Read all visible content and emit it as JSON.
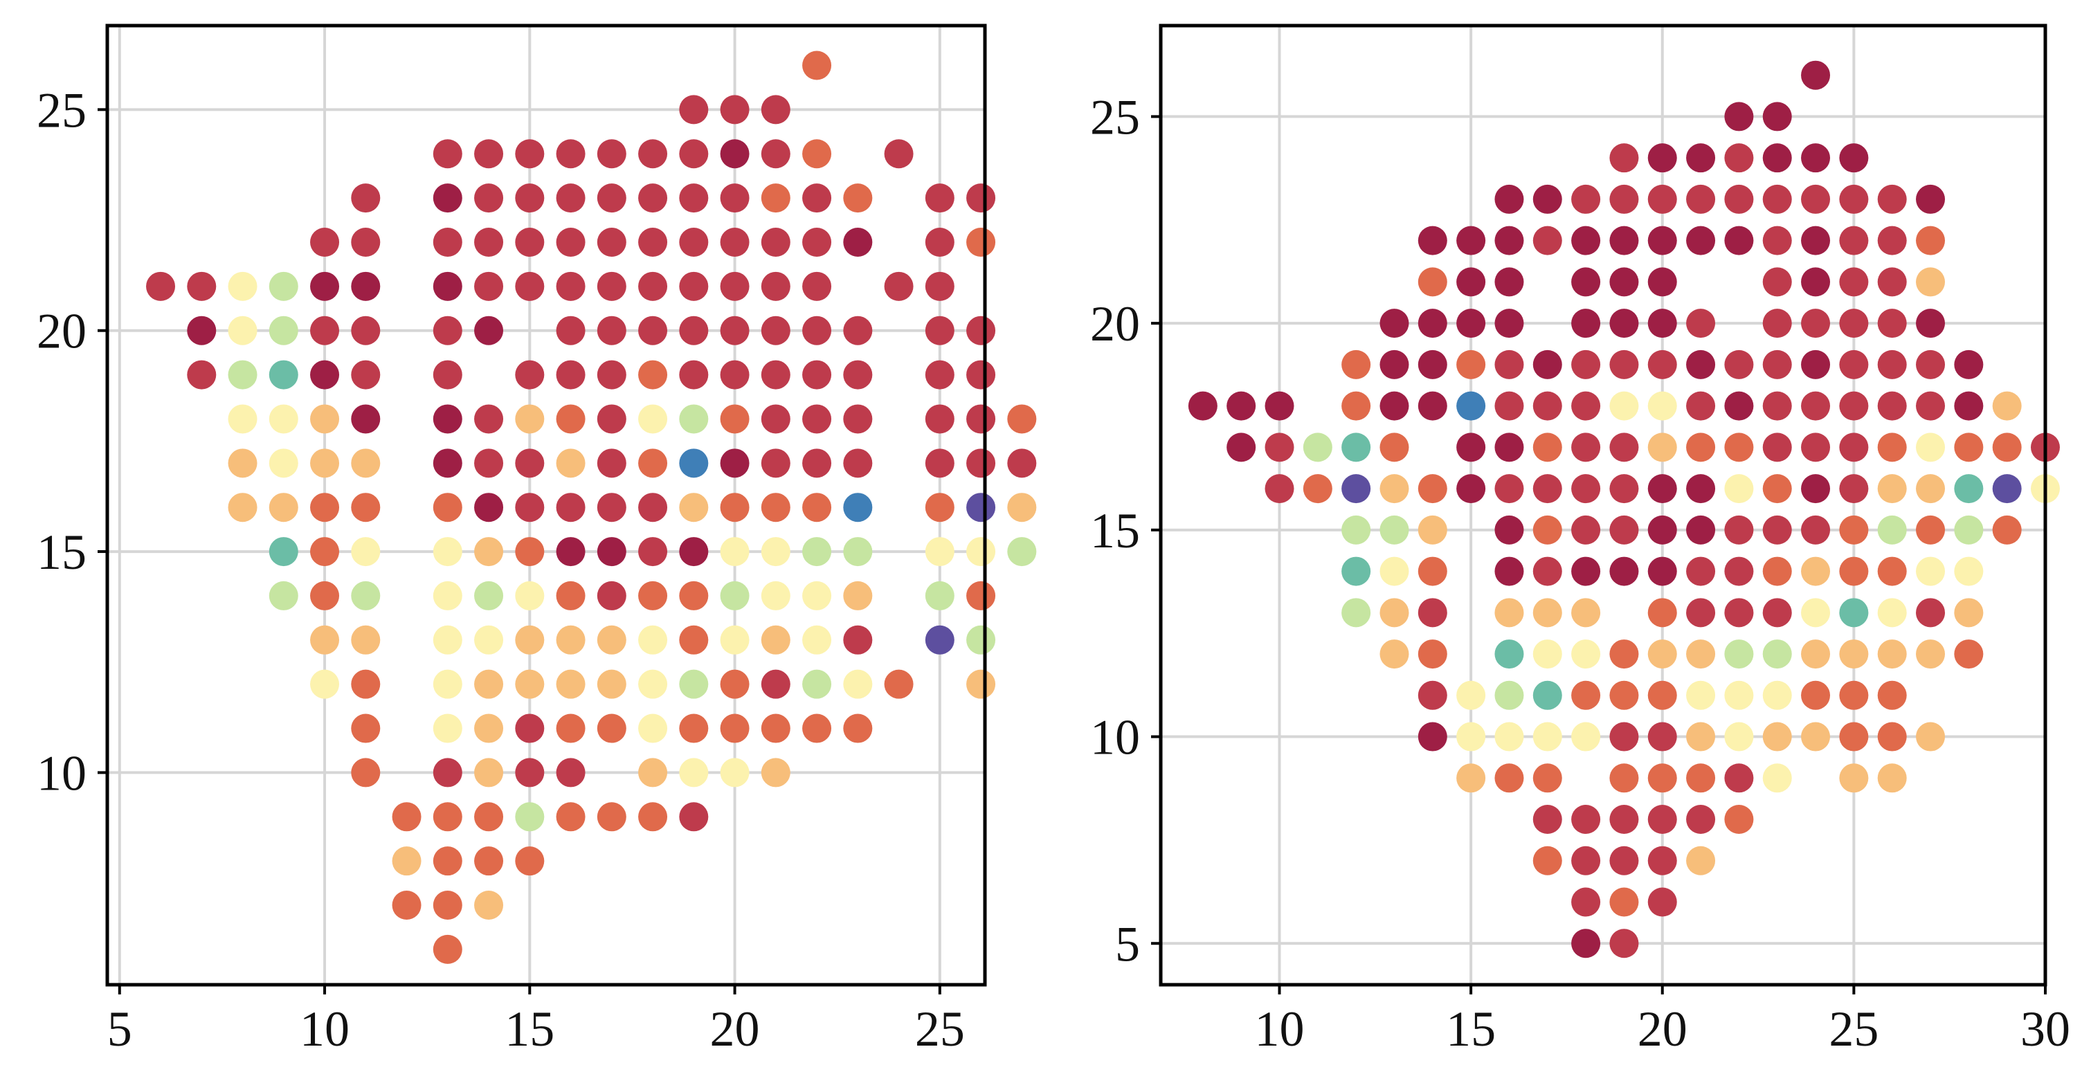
{
  "chart_data": [
    {
      "type": "scatter",
      "title": "",
      "xlabel": "",
      "ylabel": "",
      "xlim": [
        4.7,
        26.1
      ],
      "ylim": [
        5.2,
        26.9
      ],
      "xticks": [
        5,
        10,
        15,
        20,
        25
      ],
      "yticks": [
        10,
        15,
        20,
        25
      ],
      "x_tick_labels": [
        "5",
        "10",
        "15",
        "20",
        "25"
      ],
      "y_tick_labels": [
        "10",
        "15",
        "20",
        "25"
      ],
      "grid": true,
      "colormap": "Spectral",
      "color_scale_range": [
        0,
        1
      ],
      "series": [
        {
          "rows": [
            {
              "y": 26,
              "x_start": 22,
              "v": [
                "o"
              ]
            },
            {
              "y": 25,
              "x_start": 19,
              "v": [
                "r",
                "r",
                "r"
              ]
            },
            {
              "y": 24,
              "x_start": 13,
              "v": [
                "r",
                "r",
                "r",
                "r",
                "r",
                "r",
                "r",
                "R",
                "r",
                "o",
                "",
                "r"
              ]
            },
            {
              "y": 23,
              "x_start": 11,
              "v": [
                "r",
                "",
                "R",
                "r",
                "r",
                "r",
                "r",
                "r",
                "r",
                "r",
                "o",
                "r",
                "o",
                "",
                "r",
                "r"
              ]
            },
            {
              "y": 22,
              "x_start": 10,
              "v": [
                "r",
                "r",
                "",
                "r",
                "r",
                "r",
                "r",
                "r",
                "r",
                "r",
                "r",
                "r",
                "r",
                "R",
                "",
                "r",
                "o"
              ]
            },
            {
              "y": 21,
              "x_start": 6,
              "v": [
                "r",
                "r",
                "y",
                "g",
                "R",
                "R",
                "",
                "R",
                "r",
                "r",
                "r",
                "r",
                "r",
                "r",
                "r",
                "r",
                "r",
                "",
                "r",
                "r"
              ]
            },
            {
              "y": 20,
              "x_start": 7,
              "v": [
                "R",
                "y",
                "g",
                "r",
                "r",
                "",
                "r",
                "R",
                "",
                "r",
                "r",
                "r",
                "r",
                "r",
                "r",
                "r",
                "r",
                "",
                "r",
                "r"
              ]
            },
            {
              "y": 19,
              "x_start": 7,
              "v": [
                "r",
                "g",
                "t",
                "R",
                "r",
                "",
                "r",
                "",
                "r",
                "r",
                "r",
                "o",
                "r",
                "r",
                "r",
                "r",
                "r",
                "",
                "r",
                "r"
              ]
            },
            {
              "y": 18,
              "x_start": 8,
              "v": [
                "y",
                "y",
                "s",
                "R",
                "",
                "R",
                "r",
                "s",
                "o",
                "r",
                "y",
                "g",
                "o",
                "r",
                "r",
                "r",
                "",
                "r",
                "r",
                "o"
              ]
            },
            {
              "y": 17,
              "x_start": 8,
              "v": [
                "s",
                "y",
                "s",
                "s",
                "",
                "R",
                "r",
                "r",
                "s",
                "r",
                "o",
                "b",
                "R",
                "r",
                "r",
                "r",
                "",
                "r",
                "r",
                "r"
              ]
            },
            {
              "y": 16,
              "x_start": 8,
              "v": [
                "s",
                "s",
                "o",
                "o",
                "",
                "o",
                "R",
                "r",
                "r",
                "r",
                "r",
                "s",
                "o",
                "o",
                "o",
                "b",
                "",
                "o",
                "p",
                "s"
              ]
            },
            {
              "y": 15,
              "x_start": 9,
              "v": [
                "t",
                "o",
                "y",
                "",
                "y",
                "s",
                "o",
                "R",
                "R",
                "r",
                "R",
                "y",
                "y",
                "g",
                "g",
                "",
                "y",
                "y",
                "g"
              ]
            },
            {
              "y": 14,
              "x_start": 9,
              "v": [
                "g",
                "o",
                "g",
                "",
                "y",
                "g",
                "y",
                "o",
                "r",
                "o",
                "o",
                "g",
                "y",
                "y",
                "s",
                "",
                "g",
                "o"
              ]
            },
            {
              "y": 13,
              "x_start": 10,
              "v": [
                "s",
                "s",
                "",
                "y",
                "y",
                "s",
                "s",
                "s",
                "y",
                "o",
                "y",
                "s",
                "y",
                "r",
                "",
                "p",
                "g"
              ]
            },
            {
              "y": 12,
              "x_start": 10,
              "v": [
                "y",
                "o",
                "",
                "y",
                "s",
                "s",
                "s",
                "s",
                "y",
                "g",
                "o",
                "r",
                "g",
                "y",
                "o",
                "",
                "s"
              ]
            },
            {
              "y": 11,
              "x_start": 11,
              "v": [
                "o",
                "",
                "y",
                "s",
                "r",
                "o",
                "o",
                "y",
                "o",
                "o",
                "o",
                "o",
                "o"
              ]
            },
            {
              "y": 10,
              "x_start": 11,
              "v": [
                "o",
                "",
                "r",
                "s",
                "r",
                "r",
                "",
                "s",
                "y",
                "y",
                "s"
              ]
            },
            {
              "y": 9,
              "x_start": 12,
              "v": [
                "o",
                "o",
                "o",
                "g",
                "o",
                "o",
                "o",
                "r"
              ]
            },
            {
              "y": 8,
              "x_start": 12,
              "v": [
                "s",
                "o",
                "o",
                "o"
              ]
            },
            {
              "y": 7,
              "x_start": 12,
              "v": [
                "o",
                "o",
                "s"
              ]
            },
            {
              "y": 6,
              "x_start": 13,
              "v": [
                "o"
              ]
            }
          ]
        }
      ]
    },
    {
      "type": "scatter",
      "title": "",
      "xlabel": "",
      "ylabel": "",
      "xlim": [
        6.9,
        30.0
      ],
      "ylim": [
        4.0,
        27.2
      ],
      "xticks": [
        10,
        15,
        20,
        25,
        30
      ],
      "yticks": [
        5,
        10,
        15,
        20,
        25
      ],
      "x_tick_labels": [
        "10",
        "15",
        "20",
        "25",
        "30"
      ],
      "y_tick_labels": [
        "5",
        "10",
        "15",
        "20",
        "25"
      ],
      "grid": true,
      "colormap": "Spectral",
      "color_scale_range": [
        0,
        1
      ],
      "series": [
        {
          "rows": [
            {
              "y": 26,
              "x_start": 24,
              "v": [
                "R"
              ]
            },
            {
              "y": 25,
              "x_start": 22,
              "v": [
                "R",
                "R"
              ]
            },
            {
              "y": 24,
              "x_start": 19,
              "v": [
                "r",
                "R",
                "R",
                "r",
                "R",
                "R",
                "R"
              ]
            },
            {
              "y": 23,
              "x_start": 16,
              "v": [
                "R",
                "R",
                "r",
                "r",
                "r",
                "r",
                "r",
                "r",
                "r",
                "r",
                "r",
                "R"
              ]
            },
            {
              "y": 22,
              "x_start": 14,
              "v": [
                "R",
                "R",
                "R",
                "r",
                "R",
                "R",
                "R",
                "R",
                "R",
                "r",
                "R",
                "r",
                "r",
                "o"
              ]
            },
            {
              "y": 21,
              "x_start": 14,
              "v": [
                "o",
                "R",
                "R",
                "",
                "R",
                "R",
                "R",
                "",
                "",
                "r",
                "R",
                "r",
                "r",
                "s"
              ]
            },
            {
              "y": 20,
              "x_start": 13,
              "v": [
                "R",
                "R",
                "R",
                "R",
                "",
                "R",
                "R",
                "R",
                "r",
                "",
                "r",
                "r",
                "r",
                "r",
                "R"
              ]
            },
            {
              "y": 19,
              "x_start": 12,
              "v": [
                "o",
                "R",
                "R",
                "o",
                "r",
                "R",
                "r",
                "r",
                "r",
                "R",
                "r",
                "r",
                "R",
                "r",
                "r",
                "r",
                "R"
              ]
            },
            {
              "y": 18,
              "x_start": 8,
              "v": [
                "R",
                "R",
                "R",
                "",
                "o",
                "R",
                "R",
                "b",
                "r",
                "r",
                "r",
                "y",
                "y",
                "r",
                "R",
                "r",
                "r",
                "r",
                "r",
                "r",
                "R",
                "s"
              ]
            },
            {
              "y": 17,
              "x_start": 9,
              "v": [
                "R",
                "r",
                "g",
                "t",
                "o",
                "",
                "R",
                "R",
                "o",
                "r",
                "r",
                "s",
                "o",
                "o",
                "r",
                "r",
                "r",
                "o",
                "y",
                "o",
                "o",
                "r"
              ]
            },
            {
              "y": 16,
              "x_start": 10,
              "v": [
                "r",
                "o",
                "p",
                "s",
                "o",
                "R",
                "r",
                "r",
                "r",
                "r",
                "R",
                "R",
                "y",
                "o",
                "R",
                "r",
                "s",
                "s",
                "t",
                "p",
                "y"
              ]
            },
            {
              "y": 15,
              "x_start": 12,
              "v": [
                "g",
                "g",
                "s",
                "",
                "R",
                "o",
                "r",
                "r",
                "R",
                "R",
                "r",
                "r",
                "r",
                "o",
                "g",
                "o",
                "g",
                "o"
              ]
            },
            {
              "y": 14,
              "x_start": 12,
              "v": [
                "t",
                "y",
                "o",
                "",
                "R",
                "r",
                "R",
                "R",
                "R",
                "r",
                "r",
                "o",
                "s",
                "o",
                "o",
                "y",
                "y"
              ]
            },
            {
              "y": 13,
              "x_start": 12,
              "v": [
                "g",
                "s",
                "r",
                "",
                "s",
                "s",
                "s",
                "",
                "o",
                "r",
                "r",
                "r",
                "y",
                "t",
                "y",
                "r",
                "s"
              ]
            },
            {
              "y": 12,
              "x_start": 13,
              "v": [
                "s",
                "o",
                "",
                "t",
                "y",
                "y",
                "o",
                "s",
                "s",
                "g",
                "g",
                "s",
                "s",
                "s",
                "s",
                "o"
              ]
            },
            {
              "y": 11,
              "x_start": 14,
              "v": [
                "r",
                "y",
                "g",
                "t",
                "o",
                "o",
                "o",
                "y",
                "y",
                "y",
                "o",
                "o",
                "o"
              ]
            },
            {
              "y": 10,
              "x_start": 14,
              "v": [
                "R",
                "y",
                "y",
                "y",
                "y",
                "r",
                "r",
                "s",
                "y",
                "s",
                "s",
                "o",
                "o",
                "s"
              ]
            },
            {
              "y": 9,
              "x_start": 15,
              "v": [
                "s",
                "o",
                "o",
                "",
                "o",
                "o",
                "o",
                "r",
                "y",
                "",
                "s",
                "s"
              ]
            },
            {
              "y": 8,
              "x_start": 17,
              "v": [
                "r",
                "r",
                "r",
                "r",
                "r",
                "o"
              ]
            },
            {
              "y": 7,
              "x_start": 17,
              "v": [
                "o",
                "r",
                "r",
                "r",
                "s"
              ]
            },
            {
              "y": 6,
              "x_start": 18,
              "v": [
                "r",
                "o",
                "r"
              ]
            },
            {
              "y": 5,
              "x_start": 18,
              "v": [
                "R",
                "r"
              ]
            }
          ]
        }
      ]
    }
  ],
  "color_legend": {
    "R": "#9e1f45",
    "r": "#be3b4c",
    "o": "#e06a4b",
    "s": "#f7be7a",
    "y": "#fcf2ae",
    "g": "#c6e5a1",
    "t": "#6bbda6",
    "b": "#3f7fb7",
    "p": "#5d4f9f"
  }
}
